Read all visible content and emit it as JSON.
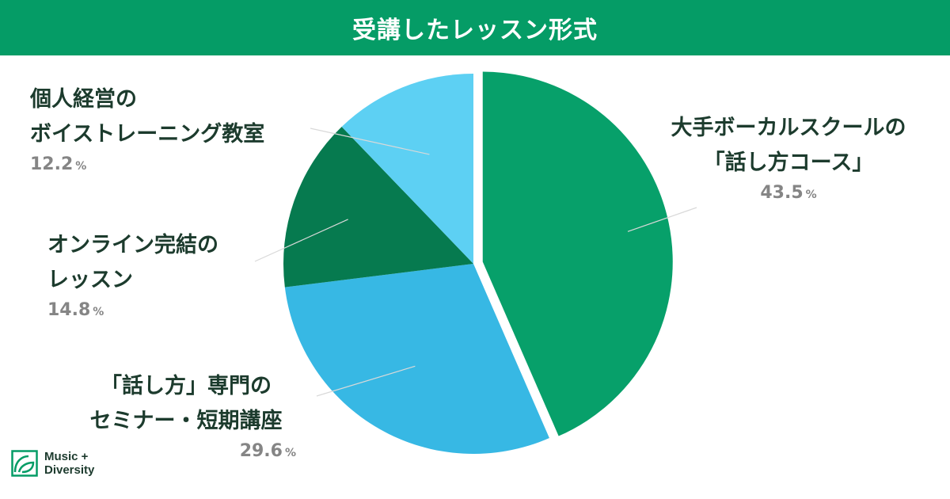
{
  "title": "受講したレッスン形式",
  "colors": {
    "header": "#059c66",
    "slices": [
      "#07a06a",
      "#37b8e4",
      "#067a4f",
      "#5dd0f3"
    ]
  },
  "chart_data": {
    "type": "pie",
    "title": "受講したレッスン形式",
    "slices": [
      {
        "label": "大手ボーカルスクールの「話し方コース」",
        "value": 43.5,
        "display_lines": [
          "大手ボーカルスクールの",
          "「話し方コース」"
        ],
        "display_value": "43.5",
        "exploded": true
      },
      {
        "label": "「話し方」専門のセミナー・短期講座",
        "value": 29.6,
        "display_lines": [
          "「話し方」専門の",
          "セミナー・短期講座"
        ],
        "display_value": "29.6"
      },
      {
        "label": "オンライン完結のレッスン",
        "value": 14.8,
        "display_lines": [
          "オンライン完結の",
          "レッスン"
        ],
        "display_value": "14.8"
      },
      {
        "label": "個人経営のボイストレーニング教室",
        "value": 12.2,
        "display_lines": [
          "個人経営の",
          "ボイストレーニング教室"
        ],
        "display_value": "12.2"
      }
    ],
    "unit": "%",
    "start_angle": "12 o'clock",
    "direction": "clockwise"
  },
  "logo": {
    "line1": "Music +",
    "line2": "Diversity"
  }
}
